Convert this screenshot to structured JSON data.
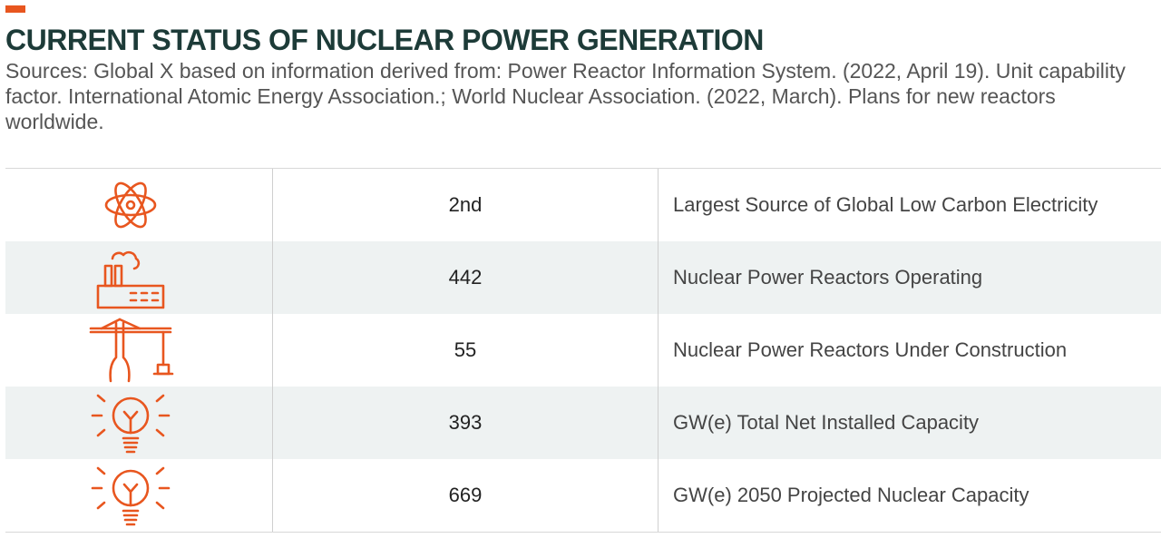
{
  "accent_color": "#e8561f",
  "title": "CURRENT STATUS OF NUCLEAR POWER GENERATION",
  "sources": "Sources: Global X based on information derived from: Power Reactor Information System. (2022, April 19). Unit capability factor. International Atomic Energy Association.; World Nuclear Association. (2022, March). Plans for new reactors worldwide.",
  "rows": [
    {
      "icon": "atom-icon",
      "value": "2nd",
      "description": "Largest Source of Global Low Carbon Electricity"
    },
    {
      "icon": "factory-icon",
      "value": "442",
      "description": "Nuclear Power Reactors Operating"
    },
    {
      "icon": "crane-icon",
      "value": "55",
      "description": "Nuclear Power Reactors Under Construction"
    },
    {
      "icon": "lightbulb-icon",
      "value": "393",
      "description": "GW(e) Total Net Installed Capacity"
    },
    {
      "icon": "lightbulb-icon",
      "value": "669",
      "description": "GW(e) 2050 Projected Nuclear Capacity"
    }
  ]
}
